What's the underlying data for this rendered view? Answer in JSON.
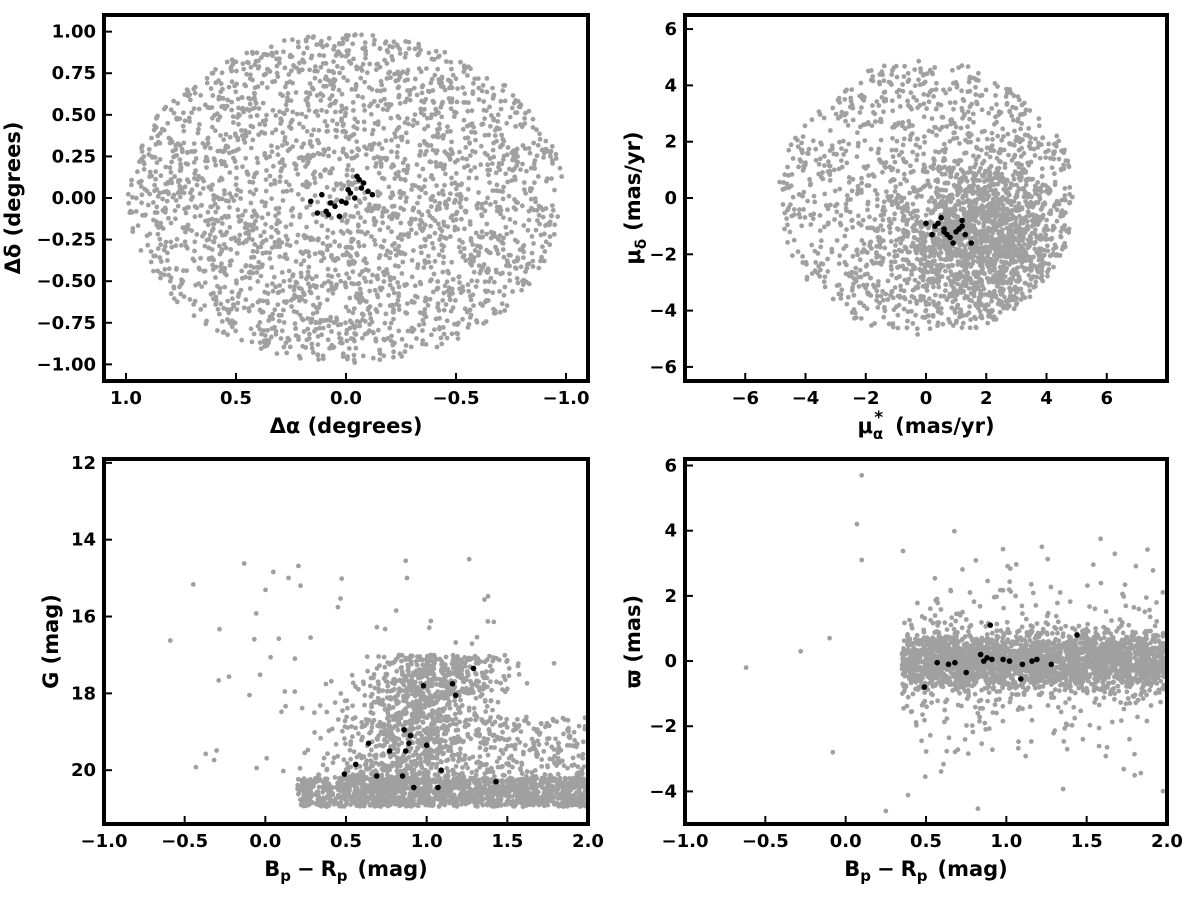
{
  "colors": {
    "field": "#a0a0a0",
    "members": "#000000"
  },
  "chart_data": [
    {
      "type": "scatter",
      "title": "",
      "xlabel": "Δα (degrees)",
      "ylabel": "Δδ (degrees)",
      "xlim": [
        1.1,
        -1.1
      ],
      "ylim": [
        -1.1,
        1.1
      ],
      "x_inverted": true,
      "xticks": [
        1.0,
        0.5,
        0.0,
        -0.5,
        -1.0
      ],
      "xtick_labels": [
        "1.0",
        "0.5",
        "0.0",
        "−0.5",
        "−1.0"
      ],
      "yticks": [
        -1.0,
        -0.75,
        -0.5,
        -0.25,
        0.0,
        0.25,
        0.5,
        0.75,
        1.0
      ],
      "ytick_labels": [
        "−1.00",
        "−0.75",
        "−0.50",
        "−0.25",
        "0.00",
        "0.25",
        "0.50",
        "0.75",
        "1.00"
      ],
      "field_distribution": {
        "shape": "disk",
        "center": [
          0.0,
          0.0
        ],
        "radius": 1.0,
        "count": 2600
      },
      "members": {
        "x": [
          0.16,
          0.11,
          0.09,
          0.13,
          0.07,
          0.05,
          0.08,
          0.03,
          0.02,
          0.0,
          -0.01,
          -0.02,
          -0.04,
          -0.05,
          -0.06,
          -0.07,
          -0.08,
          -0.1,
          -0.12
        ],
        "y": [
          -0.02,
          0.02,
          -0.08,
          -0.09,
          -0.03,
          -0.05,
          -0.1,
          -0.11,
          -0.02,
          -0.03,
          0.05,
          0.03,
          0.0,
          0.13,
          0.11,
          0.06,
          0.09,
          0.04,
          0.02
        ]
      }
    },
    {
      "type": "scatter",
      "title": "",
      "xlabel_parts": [
        "μ",
        "α",
        "*",
        "(mas/yr)"
      ],
      "ylabel_parts": [
        "μ",
        "δ",
        "(mas/yr)"
      ],
      "xlim": [
        -8,
        8
      ],
      "ylim": [
        -6.5,
        6.5
      ],
      "xticks": [
        -6,
        -4,
        -2,
        0,
        2,
        4,
        6
      ],
      "xtick_labels": [
        "−6",
        "−4",
        "−2",
        "0",
        "2",
        "4",
        "6"
      ],
      "yticks": [
        -6,
        -4,
        -2,
        0,
        2,
        4,
        6
      ],
      "ytick_labels": [
        "−6",
        "−4",
        "−2",
        "0",
        "2",
        "4",
        "6"
      ],
      "field_distribution": {
        "shape": "disk-cluster",
        "center": [
          0.0,
          0.0
        ],
        "radius": 5.0,
        "cluster_center": [
          1.8,
          -1.5
        ],
        "count": 2600
      },
      "members": {
        "x": [
          0.0,
          0.2,
          0.4,
          0.5,
          0.6,
          0.7,
          0.8,
          0.9,
          1.0,
          1.1,
          1.2,
          1.3,
          1.5,
          0.3,
          0.6,
          1.2
        ],
        "y": [
          -0.9,
          -1.3,
          -0.9,
          -0.7,
          -1.1,
          -1.3,
          -1.4,
          -1.6,
          -1.2,
          -1.1,
          -0.8,
          -1.3,
          -1.6,
          -1.0,
          -1.2,
          -1.0
        ]
      }
    },
    {
      "type": "scatter",
      "title": "",
      "xlabel_parts": [
        "B",
        "p",
        "−",
        "R",
        "p",
        "(mag)"
      ],
      "ylabel": "G (mag)",
      "xlim": [
        -1.0,
        2.0
      ],
      "ylim": [
        21.4,
        11.9
      ],
      "y_inverted": true,
      "xticks": [
        -1.0,
        -0.5,
        0.0,
        0.5,
        1.0,
        1.5,
        2.0
      ],
      "xtick_labels": [
        "−1.0",
        "−0.5",
        "0.0",
        "0.5",
        "1.0",
        "1.5",
        "2.0"
      ],
      "yticks": [
        12,
        14,
        16,
        18,
        20
      ],
      "ytick_labels": [
        "12",
        "14",
        "16",
        "18",
        "20"
      ],
      "field_distribution": {
        "shape": "cmd-wedge",
        "count": 2800
      },
      "members": {
        "x": [
          0.49,
          0.56,
          0.64,
          0.69,
          0.77,
          0.85,
          0.87,
          0.89,
          0.9,
          0.92,
          0.98,
          1.0,
          1.07,
          1.09,
          1.16,
          1.18,
          1.29,
          1.43,
          0.86
        ],
        "y": [
          20.1,
          19.85,
          19.3,
          20.15,
          19.5,
          20.15,
          19.5,
          19.3,
          19.1,
          20.45,
          17.8,
          19.35,
          20.45,
          20.0,
          17.75,
          18.05,
          17.35,
          20.3,
          18.95
        ]
      }
    },
    {
      "type": "scatter",
      "title": "",
      "xlabel_parts": [
        "B",
        "p",
        "−",
        "R",
        "p",
        "(mag)"
      ],
      "ylabel": "ϖ (mas)",
      "xlim": [
        -1.0,
        2.0
      ],
      "ylim": [
        -5.0,
        6.2
      ],
      "xticks": [
        -1.0,
        -0.5,
        0.0,
        0.5,
        1.0,
        1.5,
        2.0
      ],
      "xtick_labels": [
        "−1.0",
        "−0.5",
        "0.0",
        "0.5",
        "1.0",
        "1.5",
        "2.0"
      ],
      "yticks": [
        -4,
        -2,
        0,
        2,
        4,
        6
      ],
      "ytick_labels": [
        "−4",
        "−2",
        "0",
        "2",
        "4",
        "6"
      ],
      "field_distribution": {
        "shape": "horizontal-band",
        "count": 2800
      },
      "members": {
        "x": [
          0.49,
          0.57,
          0.64,
          0.68,
          0.75,
          0.84,
          0.86,
          0.88,
          0.9,
          0.91,
          0.98,
          1.02,
          1.09,
          1.1,
          1.16,
          1.19,
          1.28,
          1.44
        ],
        "y": [
          -0.8,
          -0.05,
          -0.1,
          -0.05,
          -0.35,
          0.2,
          0.0,
          0.1,
          1.1,
          0.05,
          0.05,
          0.0,
          -0.55,
          -0.1,
          0.0,
          0.05,
          -0.1,
          0.8
        ]
      }
    }
  ]
}
